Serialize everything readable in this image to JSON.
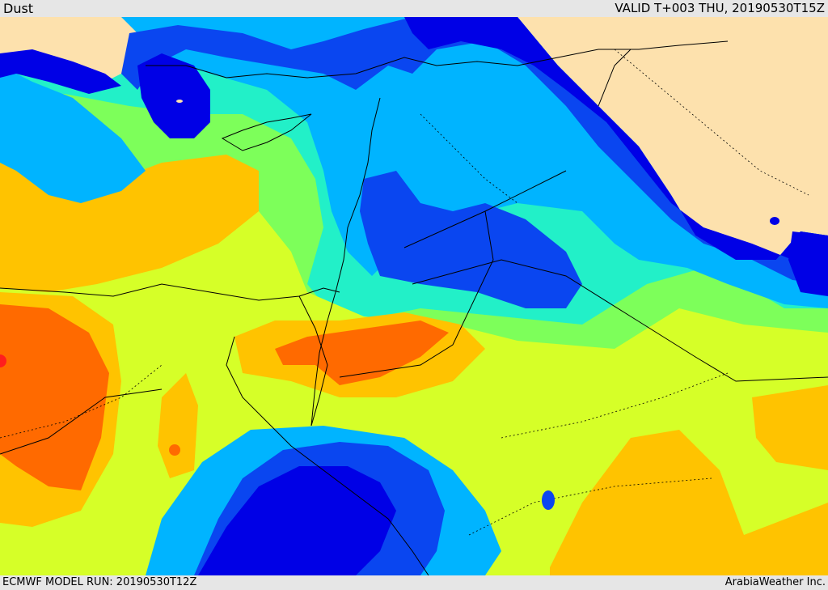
{
  "header": {
    "title": "Dust",
    "valid_time": "VALID T+003 THU, 20190530T15Z"
  },
  "footer": {
    "model_run": "ECMWF MODEL RUN: 20190530T12Z",
    "credit": "ArabiaWeather Inc."
  },
  "map": {
    "field": "Dust",
    "colors": {
      "land_no_data": "#fde1ad",
      "very_low": "#0000e6",
      "low": "#0a46f0",
      "low_mid": "#00b4ff",
      "mid": "#22f0c8",
      "mid_high": "#7dff5a",
      "high": "#d6ff28",
      "very_high": "#ffc300",
      "extreme": "#ff6a00",
      "max": "#ff1e1e",
      "borders": "#000000"
    }
  }
}
